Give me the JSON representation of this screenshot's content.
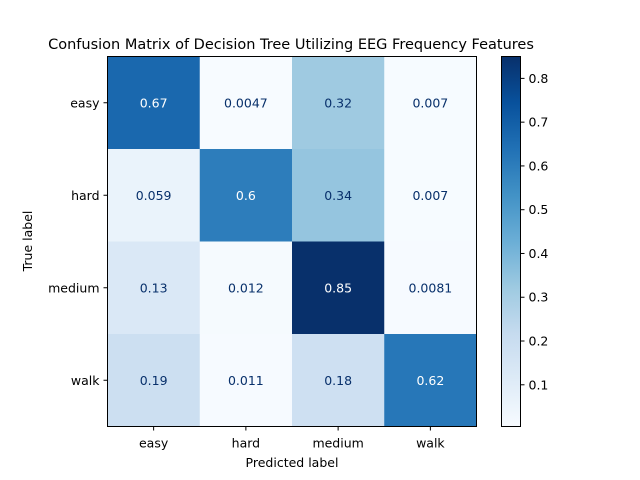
{
  "chart_data": {
    "type": "heatmap",
    "title": "Confusion Matrix of Decision Tree Utilizing EEG Frequency Features",
    "xlabel": "Predicted label",
    "ylabel": "True label",
    "x_categories": [
      "easy",
      "hard",
      "medium",
      "walk"
    ],
    "y_categories": [
      "easy",
      "hard",
      "medium",
      "walk"
    ],
    "values": [
      [
        0.67,
        0.0047,
        0.32,
        0.007
      ],
      [
        0.059,
        0.6,
        0.34,
        0.007
      ],
      [
        0.13,
        0.012,
        0.85,
        0.0081
      ],
      [
        0.19,
        0.011,
        0.18,
        0.62
      ]
    ],
    "cell_labels": [
      [
        "0.67",
        "0.0047",
        "0.32",
        "0.007"
      ],
      [
        "0.059",
        "0.6",
        "0.34",
        "0.007"
      ],
      [
        "0.13",
        "0.012",
        "0.85",
        "0.0081"
      ],
      [
        "0.19",
        "0.011",
        "0.18",
        "0.62"
      ]
    ],
    "colormap": "Blues",
    "colorbar": {
      "range": [
        0.0047,
        0.85
      ],
      "ticks": [
        0.1,
        0.2,
        0.3,
        0.4,
        0.5,
        0.6,
        0.7,
        0.8
      ],
      "tick_labels": [
        "0.1",
        "0.2",
        "0.3",
        "0.4",
        "0.5",
        "0.6",
        "0.7",
        "0.8"
      ]
    },
    "grid": false
  }
}
